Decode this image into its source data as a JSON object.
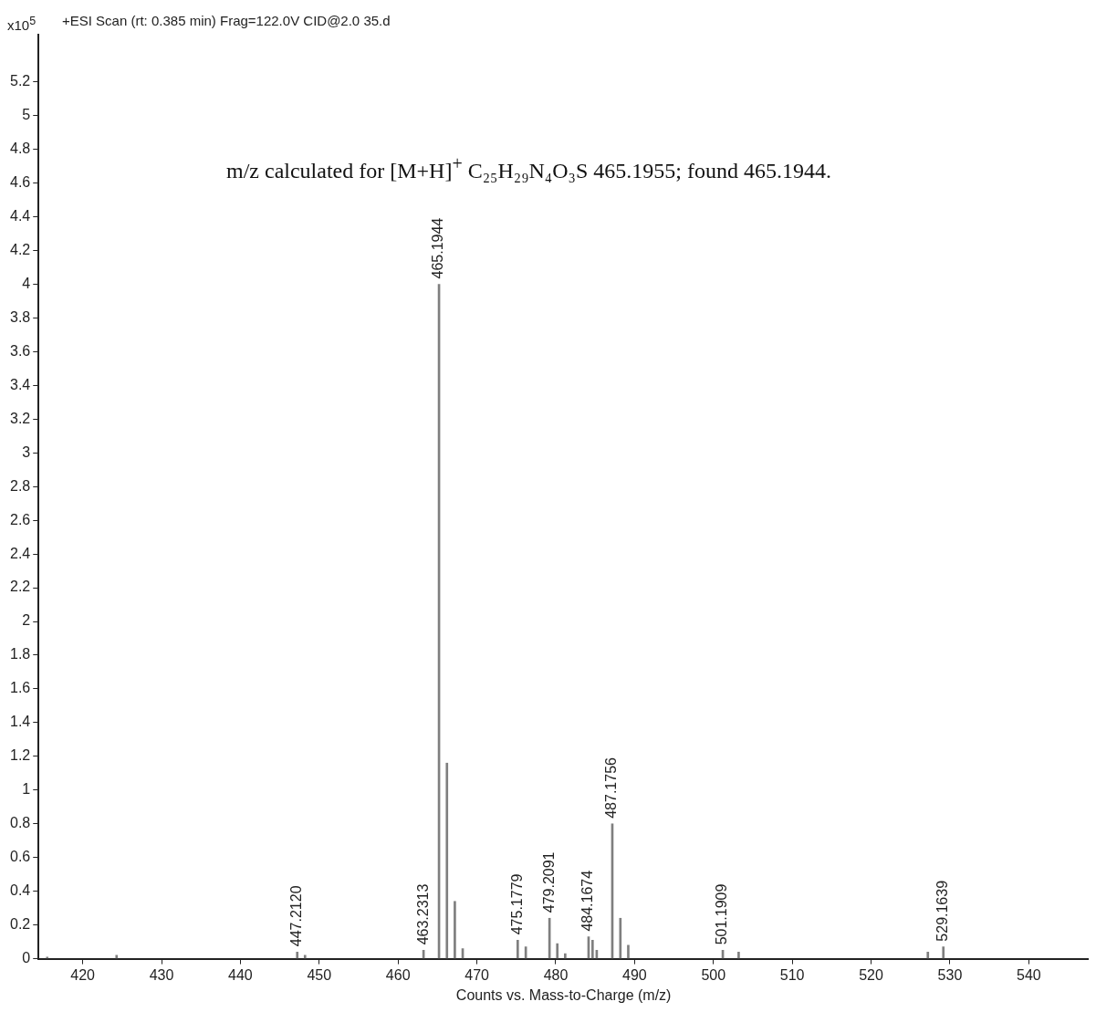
{
  "chart_data": {
    "type": "bar",
    "title": "+ESI Scan (rt: 0.385 min) Frag=122.0V CID@2.0 35.d",
    "xlabel": "Counts vs. Mass-to-Charge (m/z)",
    "ylabel": "x10$^{5}$",
    "annotations": [
      "m/z calculated for [M+H]$^{+}$ C₂₅H₂₉N₄O₃S 465.1955; found 465.1944.",
      {
        "text": "447.2120",
        "x": 447.212,
        "y": 0.04
      },
      {
        "text": "463.2313",
        "x": 463.2313,
        "y": 0.05
      },
      {
        "text": "465.1944",
        "x": 465.1944,
        "y": 4.0
      },
      {
        "text": "475.1779",
        "x": 475.1779,
        "y": 0.11
      },
      {
        "text": "479.2091",
        "x": 479.2091,
        "y": 0.24
      },
      {
        "text": "484.1674",
        "x": 484.1674,
        "y": 0.13
      },
      {
        "text": "487.1756",
        "x": 487.1756,
        "y": 0.8
      },
      {
        "text": "501.1909",
        "x": 501.1909,
        "y": 0.05
      },
      {
        "text": "529.1639",
        "x": 529.1639,
        "y": 0.07
      }
    ],
    "x": [
      415.5,
      424.3,
      447.212,
      448.2,
      463.2313,
      465.1944,
      466.2,
      467.2,
      468.2,
      475.1779,
      476.2,
      479.2091,
      480.2,
      481.2,
      484.1674,
      484.67,
      485.2,
      487.1756,
      488.2,
      489.2,
      501.1909,
      503.2,
      527.2,
      529.1639
    ],
    "values": [
      0.01,
      0.02,
      0.04,
      0.02,
      0.05,
      4.0,
      1.16,
      0.34,
      0.06,
      0.11,
      0.07,
      0.24,
      0.09,
      0.03,
      0.13,
      0.11,
      0.05,
      0.8,
      0.24,
      0.08,
      0.05,
      0.04,
      0.04,
      0.07
    ],
    "color": "#7f7f7f",
    "xlim": [
      414.4,
      547.6
    ],
    "xticks": [
      420,
      430,
      440,
      450,
      460,
      470,
      480,
      490,
      500,
      510,
      520,
      530,
      540
    ],
    "ylim": [
      0,
      5.48
    ],
    "yticks": [
      0,
      0.2,
      0.4,
      0.6,
      0.8,
      1,
      1.2,
      1.4,
      1.6,
      1.8,
      2,
      2.2,
      2.4,
      2.6,
      2.8,
      3,
      3.2,
      3.4,
      3.6,
      3.8,
      4,
      4.2,
      4.4,
      4.6,
      4.8,
      5,
      5.2
    ],
    "grid": false,
    "legend": false
  }
}
